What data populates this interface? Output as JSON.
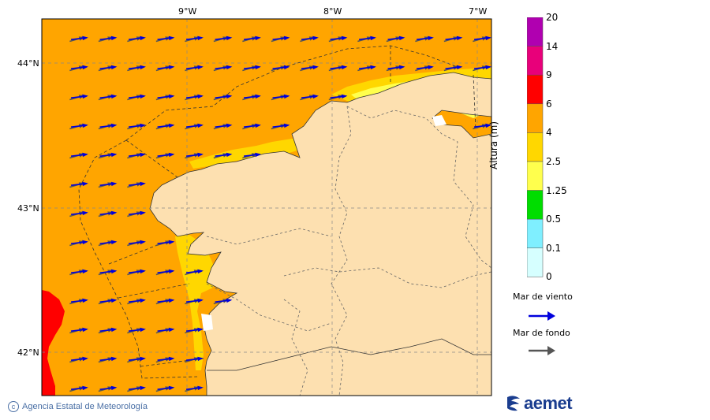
{
  "map": {
    "lon_ticks": [
      "9°W",
      "8°W",
      "7°W"
    ],
    "lat_ticks": [
      "44°N",
      "43°N",
      "42°N"
    ]
  },
  "colorbar": {
    "title": "Altura (m)",
    "levels": [
      "20",
      "14",
      "9",
      "6",
      "4",
      "2.5",
      "1.25",
      "0.5",
      "0.1",
      "0"
    ],
    "colors": [
      "#b000b0",
      "#e8007a",
      "#ff0000",
      "#ffa500",
      "#ffd700",
      "#ffff4d",
      "#00dd00",
      "#7fefff",
      "#d6ffff"
    ]
  },
  "legend": {
    "wind_sea_label": "Mar de viento",
    "swell_label": "Mar de fondo",
    "wind_sea_color": "#0000dd",
    "swell_color": "#555555"
  },
  "footer": {
    "copyright": "Agencia Estatal de Meteorología",
    "logo_text": "aemet"
  },
  "colors": {
    "land": "#fde0b0",
    "sea_4_6": "#ffa500",
    "sea_2_5_4": "#ffd700",
    "sea_1_25_2_5": "#ffff4d",
    "sea_6_9": "#ff0000"
  }
}
